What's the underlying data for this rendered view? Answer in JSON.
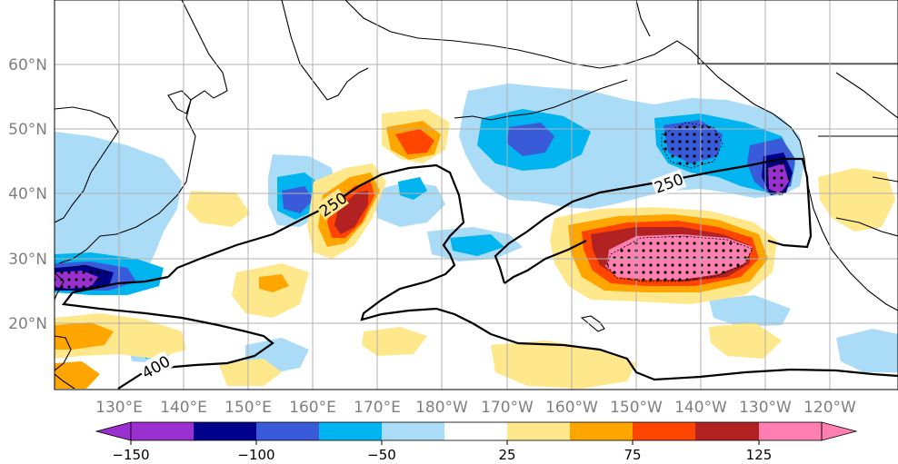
{
  "map": {
    "lat_labels": [
      "60°N",
      "50°N",
      "40°N",
      "30°N",
      "20°N"
    ],
    "lon_labels": [
      "130°E",
      "140°E",
      "150°E",
      "160°E",
      "170°E",
      "180°W",
      "170°W",
      "160°W",
      "150°W",
      "140°W",
      "130°W",
      "120°W"
    ],
    "contour_labels": [
      "250",
      "250",
      "400"
    ]
  },
  "colorbar": {
    "tick_labels": [
      "−150",
      "−100",
      "−50",
      "25",
      "75",
      "125"
    ],
    "colors": [
      "#9b30d0",
      "#00008b",
      "#3a5bd9",
      "#00b4f0",
      "#aadcf7",
      "#ffffff",
      "#ffe88c",
      "#ffa500",
      "#ff4500",
      "#b22222",
      "#ff80b0"
    ]
  }
}
